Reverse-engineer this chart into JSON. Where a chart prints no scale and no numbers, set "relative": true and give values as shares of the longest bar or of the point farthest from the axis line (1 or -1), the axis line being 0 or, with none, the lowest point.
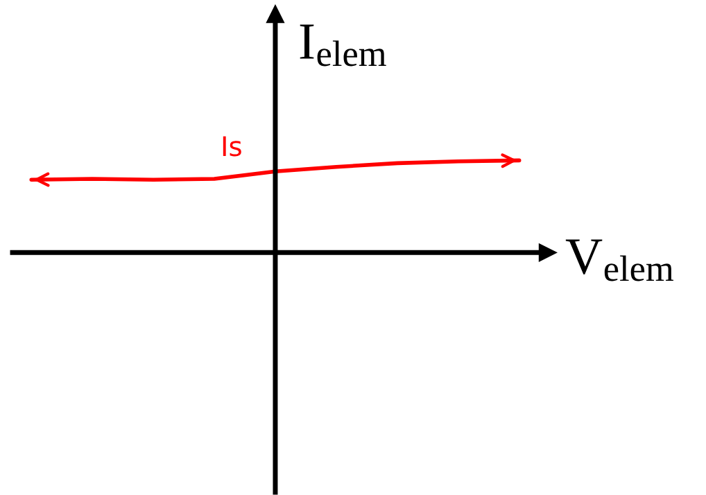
{
  "chart_data": {
    "type": "line",
    "relative": true,
    "xlabel": "V$_{elem}$",
    "ylabel": "I$_{elem}$",
    "categories": [
      null,
      null,
      null,
      null,
      null,
      null,
      null,
      null,
      null
    ],
    "series": [
      {
        "color": "#ff0000",
        "values": [
          0.79,
          0.8,
          0.79,
          0.8,
          0.88,
          0.93,
          0.97,
          0.99,
          1.0
        ]
      }
    ],
    "annotations": [
      "Is"
    ],
    "legend": false,
    "marker": "none",
    "line_style": "solid"
  }
}
